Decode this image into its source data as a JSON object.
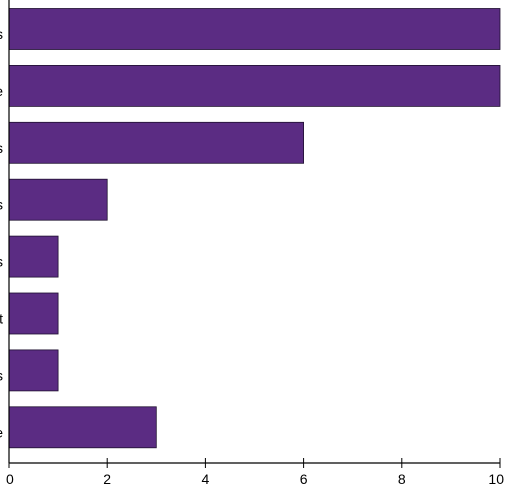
{
  "chart_data": {
    "type": "bar",
    "orientation": "horizontal",
    "categories": [
      "s",
      "e",
      "s",
      "s",
      "s",
      "t",
      "s",
      "e"
    ],
    "values": [
      10,
      10,
      6,
      2,
      1,
      1,
      1,
      3
    ],
    "xlim": [
      0,
      10
    ],
    "xticks": [
      "0",
      "2",
      "4",
      "6",
      "8",
      "10"
    ],
    "bar_color": "#5b2c83",
    "grid": false
  }
}
